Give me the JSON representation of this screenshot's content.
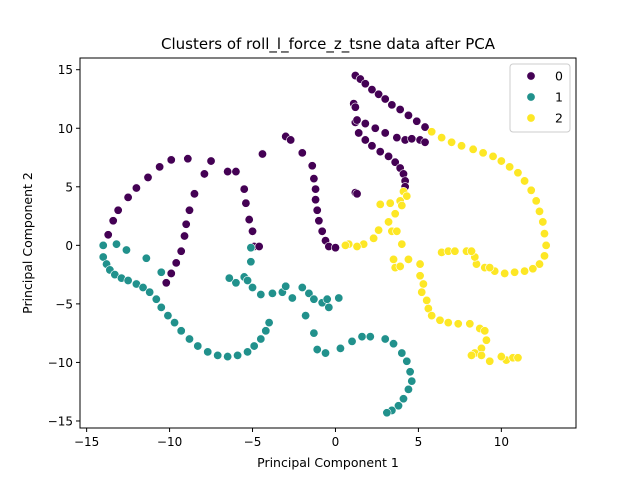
{
  "chart_data": {
    "type": "scatter",
    "title": "Clusters of roll_l_force_z_tsne data after PCA",
    "xlabel": "Principal Component 1",
    "ylabel": "Principal Component 2",
    "xlim": [
      -15.4,
      14.5
    ],
    "ylim": [
      -15.6,
      16.0
    ],
    "xticks": [
      -15,
      -10,
      -5,
      0,
      5,
      10
    ],
    "yticks": [
      -15,
      -10,
      -5,
      0,
      5,
      10,
      15
    ],
    "grid": false,
    "legend": {
      "position": "top-right",
      "entries": [
        "0",
        "1",
        "2"
      ]
    },
    "colors": {
      "0": "#440154",
      "1": "#21918c",
      "2": "#fde725"
    },
    "series": [
      {
        "name": "0",
        "points": [
          [
            -13.7,
            0.9
          ],
          [
            -13.4,
            2.1
          ],
          [
            -13.1,
            3.0
          ],
          [
            -12.5,
            4.1
          ],
          [
            -12.0,
            4.9
          ],
          [
            -11.3,
            5.8
          ],
          [
            -10.6,
            6.7
          ],
          [
            -9.9,
            7.3
          ],
          [
            -8.9,
            7.4
          ],
          [
            -7.5,
            7.2
          ],
          [
            -7.9,
            6.1
          ],
          [
            -8.5,
            4.4
          ],
          [
            -8.8,
            3.0
          ],
          [
            -9.0,
            1.8
          ],
          [
            -9.1,
            0.8
          ],
          [
            -9.3,
            -0.5
          ],
          [
            -9.6,
            -1.5
          ],
          [
            -9.9,
            -2.4
          ],
          [
            -10.2,
            -3.2
          ],
          [
            -6.5,
            6.3
          ],
          [
            -6.0,
            6.3
          ],
          [
            -5.5,
            4.8
          ],
          [
            -5.4,
            3.6
          ],
          [
            -5.2,
            2.2
          ],
          [
            -5.0,
            1.2
          ],
          [
            -4.9,
            -0.1
          ],
          [
            -4.6,
            -0.1
          ],
          [
            -4.4,
            7.8
          ],
          [
            -3.0,
            9.3
          ],
          [
            -2.7,
            9.0
          ],
          [
            -2.0,
            7.9
          ],
          [
            -1.4,
            6.8
          ],
          [
            -1.3,
            5.7
          ],
          [
            -1.2,
            4.8
          ],
          [
            -1.2,
            3.9
          ],
          [
            -1.1,
            3.0
          ],
          [
            -1.0,
            2.1
          ],
          [
            -0.8,
            1.2
          ],
          [
            -0.6,
            0.4
          ],
          [
            -0.4,
            -0.1
          ],
          [
            0.0,
            -0.2
          ],
          [
            1.2,
            4.5
          ],
          [
            1.3,
            4.4
          ],
          [
            1.2,
            14.5
          ],
          [
            1.5,
            14.2
          ],
          [
            1.8,
            13.8
          ],
          [
            2.2,
            13.3
          ],
          [
            2.6,
            12.9
          ],
          [
            3.0,
            12.5
          ],
          [
            3.4,
            12.0
          ],
          [
            3.9,
            11.6
          ],
          [
            4.4,
            11.1
          ],
          [
            4.9,
            10.6
          ],
          [
            5.4,
            10.1
          ],
          [
            5.8,
            9.7
          ],
          [
            1.1,
            12.1
          ],
          [
            1.2,
            11.8
          ],
          [
            1.2,
            10.5
          ],
          [
            1.4,
            9.6
          ],
          [
            1.8,
            9.0
          ],
          [
            2.2,
            8.5
          ],
          [
            2.7,
            8.0
          ],
          [
            3.2,
            7.6
          ],
          [
            3.6,
            7.1
          ],
          [
            3.9,
            6.6
          ],
          [
            4.1,
            6.1
          ],
          [
            4.2,
            5.5
          ],
          [
            4.2,
            5.0
          ],
          [
            1.3,
            10.7
          ],
          [
            1.8,
            10.4
          ],
          [
            2.4,
            10.0
          ],
          [
            3.0,
            9.6
          ],
          [
            3.7,
            9.2
          ],
          [
            4.2,
            9.0
          ],
          [
            4.6,
            9.1
          ],
          [
            5.1,
            9.0
          ],
          [
            5.4,
            8.8
          ]
        ]
      },
      {
        "name": "1",
        "points": [
          [
            -14.0,
            0.0
          ],
          [
            -14.0,
            -1.0
          ],
          [
            -13.8,
            -1.6
          ],
          [
            -13.6,
            -2.1
          ],
          [
            -13.3,
            -2.5
          ],
          [
            -12.9,
            -2.8
          ],
          [
            -12.5,
            -3.0
          ],
          [
            -12.0,
            -3.3
          ],
          [
            -11.6,
            -3.6
          ],
          [
            -11.2,
            -4.0
          ],
          [
            -10.8,
            -4.6
          ],
          [
            -10.5,
            -5.3
          ],
          [
            -10.1,
            -6.0
          ],
          [
            -9.7,
            -6.6
          ],
          [
            -9.3,
            -7.3
          ],
          [
            -8.8,
            -8.0
          ],
          [
            -8.3,
            -8.6
          ],
          [
            -7.7,
            -9.1
          ],
          [
            -7.1,
            -9.4
          ],
          [
            -6.5,
            -9.5
          ],
          [
            -5.9,
            -9.4
          ],
          [
            -5.3,
            -9.1
          ],
          [
            -4.9,
            -8.6
          ],
          [
            -4.5,
            -8.0
          ],
          [
            -4.2,
            -7.3
          ],
          [
            -4.0,
            -6.6
          ],
          [
            -13.2,
            0.1
          ],
          [
            -12.6,
            -0.4
          ],
          [
            -11.4,
            -1.1
          ],
          [
            -10.5,
            -2.3
          ],
          [
            -5.5,
            -2.7
          ],
          [
            -5.3,
            -3.0
          ],
          [
            -6.0,
            -3.2
          ],
          [
            -6.4,
            -2.8
          ],
          [
            -5.1,
            -1.4
          ],
          [
            -5.1,
            -0.2
          ],
          [
            -5.0,
            -3.6
          ],
          [
            -4.5,
            -4.2
          ],
          [
            -3.8,
            -4.1
          ],
          [
            -3.2,
            -4.0
          ],
          [
            -3.0,
            -3.5
          ],
          [
            -2.6,
            -4.5
          ],
          [
            -2.0,
            -3.6
          ],
          [
            -1.6,
            -4.1
          ],
          [
            -1.3,
            -4.6
          ],
          [
            -0.8,
            -4.9
          ],
          [
            -0.4,
            -5.3
          ],
          [
            -0.5,
            -4.6
          ],
          [
            0.2,
            -4.5
          ],
          [
            -1.8,
            -6.0
          ],
          [
            -1.3,
            -7.5
          ],
          [
            -1.1,
            -8.9
          ],
          [
            -0.6,
            -9.2
          ],
          [
            0.3,
            -8.8
          ],
          [
            1.0,
            -8.2
          ],
          [
            1.6,
            -7.8
          ],
          [
            2.1,
            -7.8
          ],
          [
            3.0,
            -8.0
          ],
          [
            3.5,
            -8.4
          ],
          [
            4.0,
            -9.2
          ],
          [
            4.3,
            -9.9
          ],
          [
            4.5,
            -10.8
          ],
          [
            4.6,
            -11.6
          ],
          [
            4.4,
            -12.3
          ],
          [
            4.1,
            -13.1
          ],
          [
            3.8,
            -13.7
          ],
          [
            3.4,
            -14.1
          ],
          [
            3.1,
            -14.3
          ]
        ]
      },
      {
        "name": "2",
        "points": [
          [
            5.8,
            9.7
          ],
          [
            6.4,
            9.2
          ],
          [
            7.0,
            8.8
          ],
          [
            7.6,
            8.5
          ],
          [
            8.3,
            8.2
          ],
          [
            8.9,
            7.9
          ],
          [
            9.5,
            7.6
          ],
          [
            10.0,
            7.2
          ],
          [
            10.5,
            6.7
          ],
          [
            11.0,
            6.2
          ],
          [
            11.4,
            5.5
          ],
          [
            11.8,
            4.7
          ],
          [
            12.1,
            3.8
          ],
          [
            12.3,
            2.9
          ],
          [
            12.5,
            2.0
          ],
          [
            12.6,
            1.0
          ],
          [
            12.7,
            0.0
          ],
          [
            12.6,
            -0.9
          ],
          [
            12.3,
            -1.6
          ],
          [
            11.9,
            -2.0
          ],
          [
            11.4,
            -2.2
          ],
          [
            10.8,
            -2.3
          ],
          [
            10.2,
            -2.4
          ],
          [
            9.6,
            -2.2
          ],
          [
            9.0,
            -1.9
          ],
          [
            8.5,
            -1.6
          ],
          [
            4.1,
            4.6
          ],
          [
            4.3,
            4.2
          ],
          [
            3.9,
            3.8
          ],
          [
            3.3,
            3.6
          ],
          [
            2.7,
            3.5
          ],
          [
            4.0,
            3.4
          ],
          [
            3.6,
            2.7
          ],
          [
            3.2,
            2.0
          ],
          [
            2.6,
            1.3
          ],
          [
            2.3,
            0.6
          ],
          [
            1.7,
            0.1
          ],
          [
            1.3,
            -0.1
          ],
          [
            0.8,
            0.1
          ],
          [
            0.6,
            0.0
          ],
          [
            3.4,
            1.2
          ],
          [
            3.7,
            1.2
          ],
          [
            4.0,
            0.1
          ],
          [
            3.5,
            -1.2
          ],
          [
            3.6,
            -1.9
          ],
          [
            3.9,
            -1.8
          ],
          [
            4.4,
            -1.2
          ],
          [
            5.1,
            -1.6
          ],
          [
            5.1,
            -2.6
          ],
          [
            5.3,
            -3.3
          ],
          [
            5.2,
            -4.0
          ],
          [
            5.5,
            -4.7
          ],
          [
            5.6,
            -5.4
          ],
          [
            5.8,
            -6.0
          ],
          [
            6.3,
            -6.4
          ],
          [
            6.8,
            -6.6
          ],
          [
            7.4,
            -6.7
          ],
          [
            8.1,
            -6.7
          ],
          [
            8.7,
            -7.1
          ],
          [
            9.0,
            -7.3
          ],
          [
            9.1,
            -8.1
          ],
          [
            8.8,
            -8.8
          ],
          [
            8.4,
            -9.2
          ],
          [
            8.2,
            -9.4
          ],
          [
            6.4,
            -0.6
          ],
          [
            6.8,
            -0.5
          ],
          [
            7.2,
            -0.5
          ],
          [
            7.9,
            -0.5
          ],
          [
            8.4,
            -1.0
          ],
          [
            8.2,
            -0.5
          ],
          [
            9.3,
            -1.9
          ],
          [
            8.8,
            -9.4
          ],
          [
            9.3,
            -9.9
          ],
          [
            10.3,
            -9.8
          ],
          [
            10.7,
            -9.6
          ],
          [
            11.0,
            -9.6
          ],
          [
            10.0,
            -9.5
          ]
        ]
      }
    ]
  }
}
